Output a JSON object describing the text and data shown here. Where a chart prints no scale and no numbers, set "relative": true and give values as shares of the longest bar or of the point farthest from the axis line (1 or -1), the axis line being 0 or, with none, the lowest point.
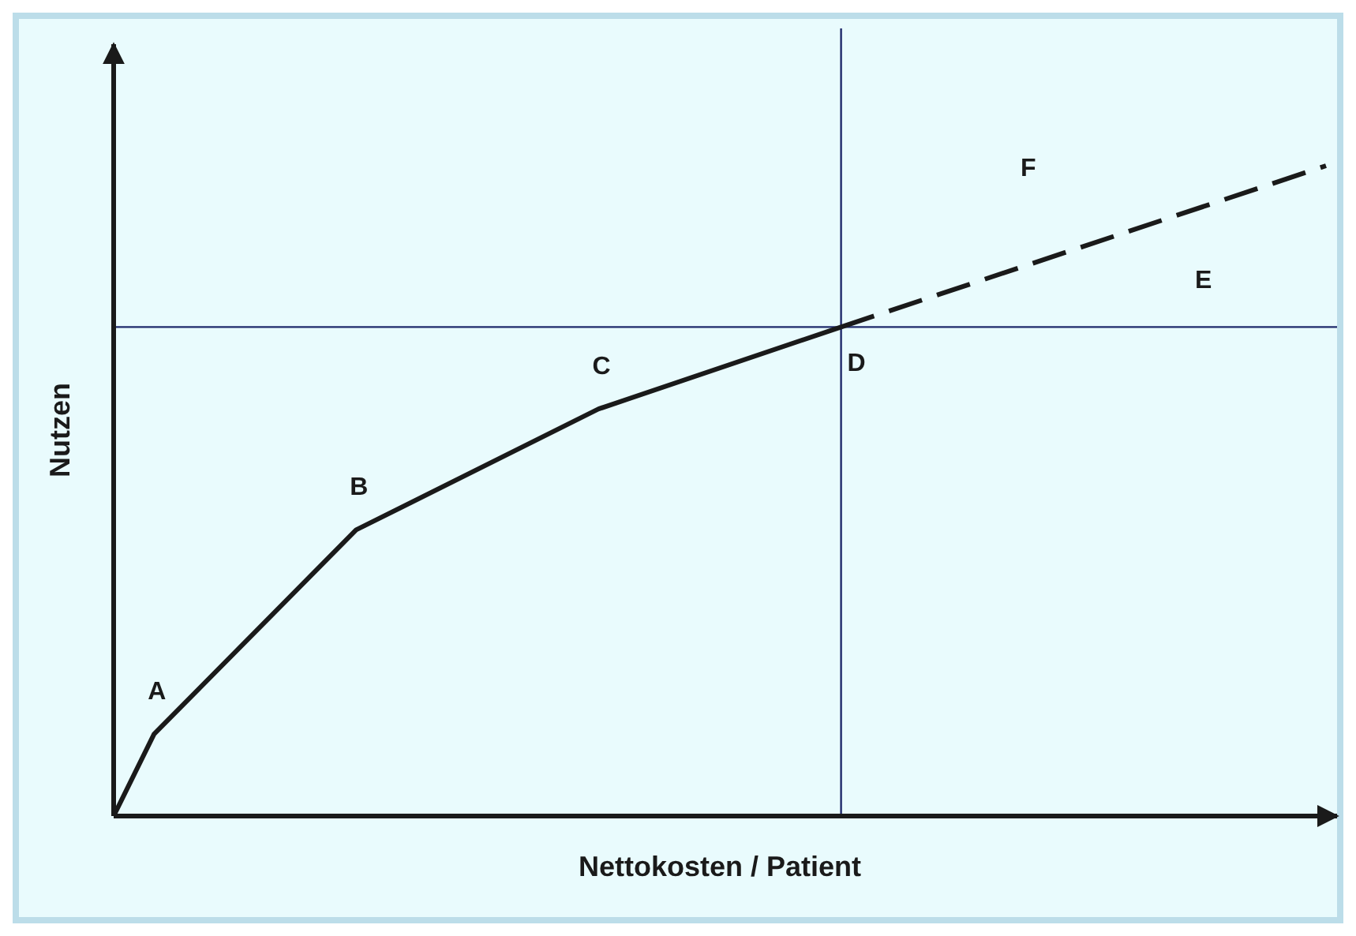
{
  "chart_data": {
    "type": "line",
    "relative": true,
    "xlabel": "Nettokosten / Patient",
    "ylabel": "Nutzen",
    "categories": [
      null,
      null,
      null,
      null,
      null,
      null,
      null,
      null,
      null,
      null,
      null,
      null,
      null,
      null,
      null,
      null,
      null,
      null,
      null,
      null,
      null,
      null,
      null,
      null,
      null,
      null,
      null,
      null,
      null,
      null,
      null
    ],
    "series": [
      {
        "color": "#1a1a1a",
        "values": [
          0,
          0.126,
          null,
          null,
          null,
          null,
          0.44,
          null,
          null,
          null,
          null,
          null,
          0.626,
          null,
          null,
          null,
          null,
          null,
          0.752,
          null,
          null,
          null,
          null,
          null,
          null,
          null,
          null,
          null,
          null,
          null,
          null
        ],
        "line_style": "solid"
      },
      {
        "color": "#1a1a1a",
        "values": [
          null,
          null,
          null,
          null,
          null,
          null,
          null,
          null,
          null,
          null,
          null,
          null,
          null,
          null,
          null,
          null,
          null,
          null,
          0.752,
          null,
          null,
          null,
          null,
          null,
          null,
          null,
          null,
          null,
          null,
          null,
          1
        ],
        "line_style": "dashed"
      }
    ],
    "ref_lines": [
      {
        "axis": "y",
        "value": 0.752,
        "color": "#1f2a6b"
      }
    ],
    "annotations": [
      "A",
      "B",
      "C",
      "D",
      "E",
      "F"
    ]
  }
}
